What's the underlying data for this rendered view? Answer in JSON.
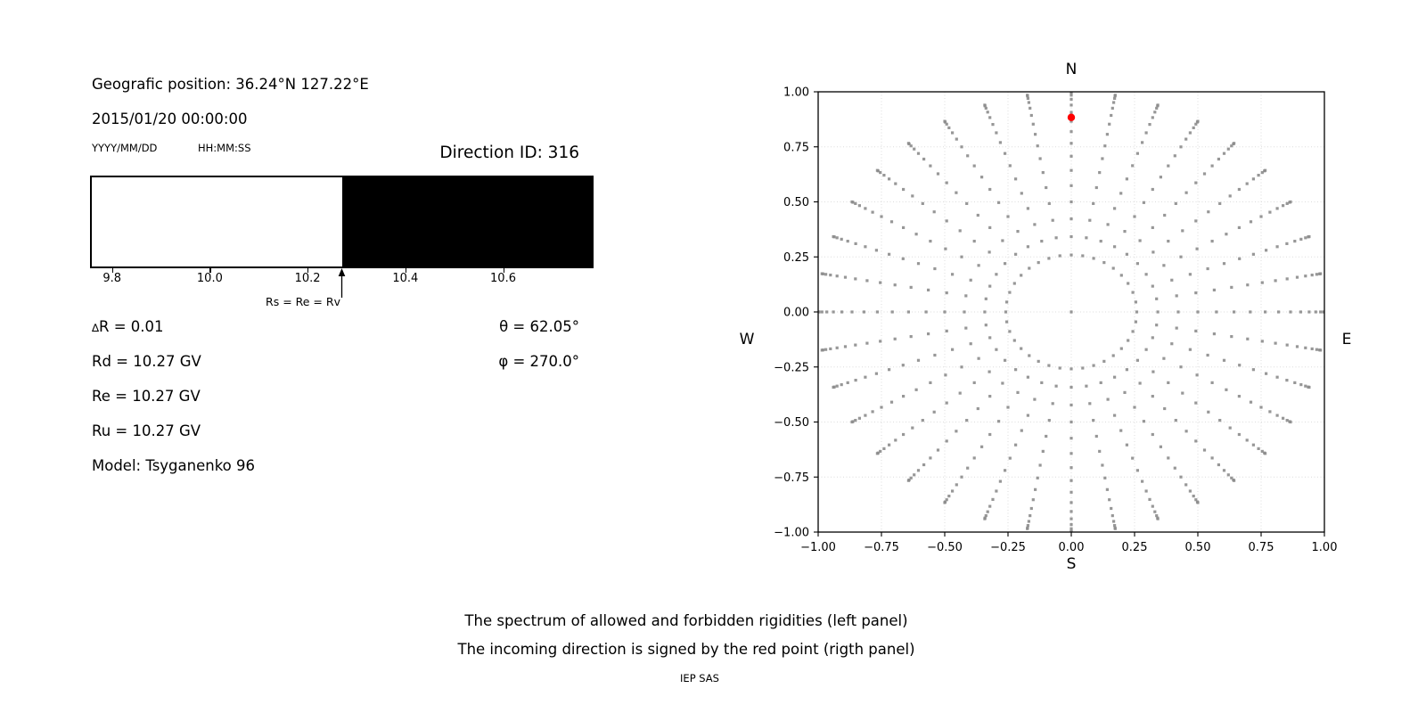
{
  "header": {
    "geo_position": "Geografic position: 36.24°N 127.22°E",
    "datetime": "2015/01/20 00:00:00",
    "date_format": "YYYY/MM/DD",
    "time_format": "HH:MM:SS",
    "direction_id": "Direction ID: 316"
  },
  "parameters": {
    "delta_symbol": "∆",
    "delta_r_rest": "R = 0.01",
    "rd": "Rd = 10.27 GV",
    "re": "Re = 10.27 GV",
    "ru": "Ru = 10.27 GV",
    "model": "Model: Tsyganenko 96",
    "theta": "θ = 62.05°",
    "phi": "φ = 270.0°"
  },
  "captions": {
    "line1": "The spectrum of allowed and forbidden rigidities (left panel)",
    "line2": "The incoming direction is signed by the red point (rigth panel)",
    "credit": "IEP SAS"
  },
  "chart_data": [
    {
      "type": "bar",
      "panel": "left-spectrum",
      "description": "Rigidity spectrum: white region = one state, black region = other (allowed/forbidden)",
      "x_range": [
        9.755,
        10.785
      ],
      "x_ticks": [
        "9.8",
        "10.0",
        "10.2",
        "10.4",
        "10.6"
      ],
      "x_tick_values": [
        9.8,
        10.0,
        10.2,
        10.4,
        10.6
      ],
      "white_region": [
        9.755,
        10.27
      ],
      "black_region": [
        10.27,
        10.785
      ],
      "boundary_value": 10.27,
      "arrow_x": 10.27,
      "arrow_label": "Rs = Re = Rv",
      "colors": {
        "white": "#ffffff",
        "black": "#000000"
      }
    },
    {
      "type": "scatter",
      "panel": "right-directions",
      "title": "N",
      "xlabel": "S",
      "left_label": "W",
      "right_label": "E",
      "xlim": [
        -1.0,
        1.0
      ],
      "ylim": [
        -1.0,
        1.0
      ],
      "x_ticks": [
        -1.0,
        -0.75,
        -0.5,
        -0.25,
        0.0,
        0.25,
        0.5,
        0.75,
        1.0
      ],
      "y_ticks": [
        -1.0,
        -0.75,
        -0.5,
        -0.25,
        0.0,
        0.25,
        0.5,
        0.75,
        1.0
      ],
      "grid": "dotted",
      "grid_color": "#dcdcdc",
      "gray_points": {
        "note": "rays of direction dots: x=sin(zenith)*sin(azimuth), y=sin(zenith)*cos(azimuth)",
        "azimuth_deg_start": 0,
        "azimuth_deg_step": 10,
        "azimuth_count": 36,
        "zenith_deg_min": 15,
        "zenith_deg_max": 90,
        "zenith_deg_step": 5,
        "radius_rule": "sin(zenith)",
        "center_point": [
          0.0,
          0.0
        ],
        "color": "#8c8c8c",
        "marker_px": 3.2
      },
      "red_point": {
        "x": 0.0,
        "y": 0.8837,
        "color": "#ff0000",
        "meaning": "incoming direction θ=62.05°, φ=270.0°"
      }
    }
  ]
}
